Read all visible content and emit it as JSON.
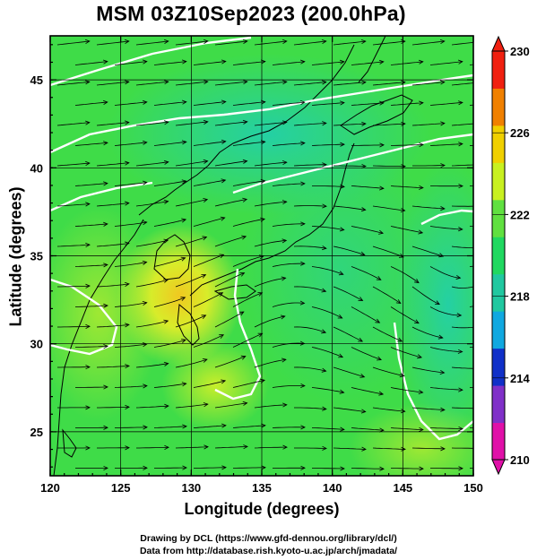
{
  "title": "MSM 03Z10Sep2023 (200.0hPa)",
  "axes": {
    "xlabel": "Longitude (degrees)",
    "ylabel": "Latitude  (degrees)",
    "x_ticks": [
      "120",
      "125",
      "130",
      "135",
      "140",
      "145",
      "150"
    ],
    "y_ticks": [
      "25",
      "30",
      "35",
      "40",
      "45"
    ],
    "xlim": [
      120,
      150
    ],
    "ylim": [
      22.5,
      47.5
    ]
  },
  "colorbar": {
    "labels": [
      "230",
      "226",
      "222",
      "218",
      "214",
      "210"
    ],
    "min": 210,
    "max": 230,
    "colors": [
      "#e010a8",
      "#8030c8",
      "#1030c8",
      "#10a8e0",
      "#20c8a0",
      "#20d860",
      "#60e040",
      "#c8f020",
      "#f0d000",
      "#f08000",
      "#f02010"
    ]
  },
  "credits": {
    "line1": "Drawing by DCL (https://www.gfd-dennou.org/library/dcl/)",
    "line2": "Data from http://database.rish.kyoto-u.ac.jp/arch/jmadata/"
  },
  "colors": {
    "background_field": "#3fdc48",
    "warm_field": "#d0ec30",
    "cool_field": "#30d890",
    "contour": "#ffffff",
    "streamline": "#000000"
  }
}
